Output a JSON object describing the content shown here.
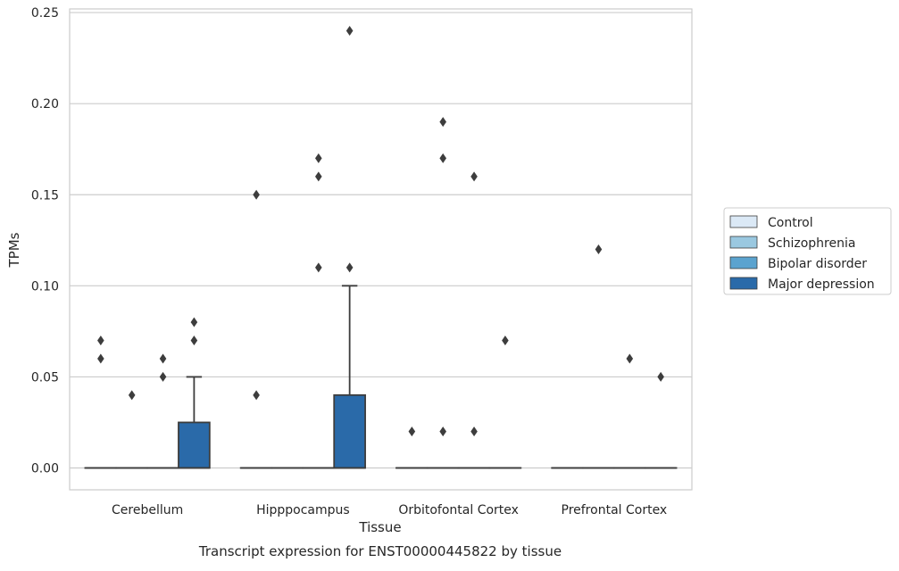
{
  "chart_data": {
    "type": "box",
    "title": "",
    "caption": "Transcript expression for ENST00000445822 by tissue",
    "xlabel": "Tissue",
    "ylabel": "TPMs",
    "ylim": [
      -0.012,
      0.252
    ],
    "yticks": [
      0.0,
      0.05,
      0.1,
      0.15,
      0.2,
      0.25
    ],
    "ytick_labels": [
      "0.00",
      "0.05",
      "0.10",
      "0.15",
      "0.20",
      "0.25"
    ],
    "grid": true,
    "legend_position": "right",
    "categories": [
      "Cerebellum",
      "Hipppocampus",
      "Orbitofontal Cortex",
      "Prefrontal Cortex"
    ],
    "series": [
      {
        "name": "Control",
        "color": "#dbe9f6",
        "boxes": [
          {
            "q1": 0,
            "median": 0,
            "q3": 0,
            "whisker_low": 0,
            "whisker_high": 0,
            "outliers": [
              0.07,
              0.06
            ]
          },
          {
            "q1": 0,
            "median": 0,
            "q3": 0,
            "whisker_low": 0,
            "whisker_high": 0,
            "outliers": [
              0.15,
              0.04
            ]
          },
          {
            "q1": 0,
            "median": 0,
            "q3": 0,
            "whisker_low": 0,
            "whisker_high": 0,
            "outliers": [
              0.02
            ]
          },
          {
            "q1": 0,
            "median": 0,
            "q3": 0,
            "whisker_low": 0,
            "whisker_high": 0,
            "outliers": []
          }
        ]
      },
      {
        "name": "Schizophrenia",
        "color": "#9ac8e0",
        "boxes": [
          {
            "q1": 0,
            "median": 0,
            "q3": 0,
            "whisker_low": 0,
            "whisker_high": 0,
            "outliers": [
              0.04
            ]
          },
          {
            "q1": 0,
            "median": 0,
            "q3": 0,
            "whisker_low": 0,
            "whisker_high": 0,
            "outliers": []
          },
          {
            "q1": 0,
            "median": 0,
            "q3": 0,
            "whisker_low": 0,
            "whisker_high": 0,
            "outliers": [
              0.19,
              0.17,
              0.02
            ]
          },
          {
            "q1": 0,
            "median": 0,
            "q3": 0,
            "whisker_low": 0,
            "whisker_high": 0,
            "outliers": [
              0.12
            ]
          }
        ]
      },
      {
        "name": "Bipolar disorder",
        "color": "#5ba3cf",
        "boxes": [
          {
            "q1": 0,
            "median": 0,
            "q3": 0,
            "whisker_low": 0,
            "whisker_high": 0,
            "outliers": [
              0.06,
              0.05
            ]
          },
          {
            "q1": 0,
            "median": 0,
            "q3": 0,
            "whisker_low": 0,
            "whisker_high": 0,
            "outliers": [
              0.17,
              0.16,
              0.11
            ]
          },
          {
            "q1": 0,
            "median": 0,
            "q3": 0,
            "whisker_low": 0,
            "whisker_high": 0,
            "outliers": [
              0.16,
              0.02
            ]
          },
          {
            "q1": 0,
            "median": 0,
            "q3": 0,
            "whisker_low": 0,
            "whisker_high": 0,
            "outliers": [
              0.06
            ]
          }
        ]
      },
      {
        "name": "Major depression",
        "color": "#2a6aa9",
        "boxes": [
          {
            "q1": 0,
            "median": 0,
            "q3": 0.025,
            "whisker_low": 0,
            "whisker_high": 0.05,
            "outliers": [
              0.08,
              0.07
            ]
          },
          {
            "q1": 0,
            "median": 0,
            "q3": 0.04,
            "whisker_low": 0,
            "whisker_high": 0.1,
            "outliers": [
              0.24,
              0.11
            ]
          },
          {
            "q1": 0,
            "median": 0,
            "q3": 0,
            "whisker_low": 0,
            "whisker_high": 0,
            "outliers": [
              0.07
            ]
          },
          {
            "q1": 0,
            "median": 0,
            "q3": 0,
            "whisker_low": 0,
            "whisker_high": 0,
            "outliers": [
              0.05
            ]
          }
        ]
      }
    ]
  }
}
